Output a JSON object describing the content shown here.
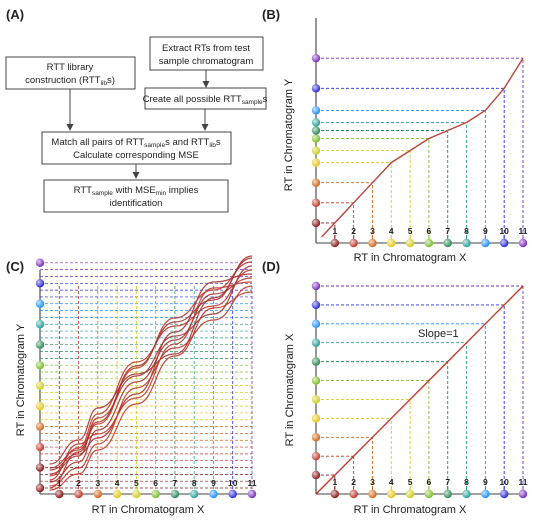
{
  "panels": {
    "a": {
      "label": "(A)",
      "boxes": {
        "library_line1": "RTT library",
        "library_line2_pre": "construction (RTT",
        "library_line2_sub": "lib",
        "library_line2_post": "s)",
        "extract_line1": "Extract RTs from test",
        "extract_line2": "sample chromatogram",
        "create_pre": "Create all possible RTT",
        "create_sub": "sample",
        "create_post": "s",
        "match_line1_pre": "Match all pairs of RTT",
        "match_line1_sub1": "sample",
        "match_line1_mid": "s and RTT",
        "match_line1_sub2": "lib",
        "match_line1_post": "s",
        "match_line2": "Calculate corresponding MSE",
        "result_line1_pre": "RTT",
        "result_line1_sub1": "sample",
        "result_line1_mid": " with MSE",
        "result_line1_sub2": "min",
        "result_line1_post": " implies",
        "result_line2": "identification"
      }
    },
    "b": {
      "label": "(B)",
      "xlabel": "RT in Chromatogram X",
      "ylabel": "RT in Chromatogram Y"
    },
    "c": {
      "label": "(C)",
      "xlabel": "RT in Chromatogram X",
      "ylabel": "RT in Chromatogram Y"
    },
    "d": {
      "label": "(D)",
      "xlabel": "RT in Chromatogram X",
      "ylabel": "RT in Chromatogram X",
      "annotation": "Slope=1"
    }
  },
  "x_tick_labels": [
    "1",
    "2",
    "3",
    "4",
    "5",
    "6",
    "7",
    "8",
    "9",
    "10",
    "11"
  ],
  "point_colors": [
    "#8b1a1a",
    "#c0392b",
    "#d2691e",
    "#e6c619",
    "#cfcf20",
    "#7cbf2a",
    "#2e8b57",
    "#2aa198",
    "#1e90ff",
    "#2b2bd6",
    "#7b2fbf"
  ],
  "chart_data": [
    {
      "panel": "B",
      "type": "line",
      "x": [
        0.3,
        0.95,
        1.5,
        2,
        3,
        4,
        5,
        6,
        7,
        8,
        9,
        10,
        11
      ],
      "y": [
        0.3,
        0.95,
        1.5,
        2,
        3,
        4,
        4.6,
        5.2,
        5.6,
        6,
        6.6,
        7.7,
        9.2
      ]
    },
    {
      "panel": "C",
      "type": "line",
      "series": [
        {
          "x": [
            0.5,
            2,
            3,
            5,
            7,
            9,
            11
          ],
          "y": [
            0.3,
            2.1,
            3.5,
            6.3,
            8.8,
            10.2,
            11.6
          ]
        },
        {
          "x": [
            0.5,
            2,
            3,
            5,
            7,
            9,
            11
          ],
          "y": [
            0.6,
            1.6,
            3.2,
            5.6,
            7.7,
            10.0,
            10.8
          ]
        },
        {
          "x": [
            0.5,
            2,
            3,
            5,
            7,
            9,
            11
          ],
          "y": [
            0.9,
            2.3,
            4.0,
            6.6,
            8.4,
            9.4,
            11.2
          ]
        },
        {
          "x": [
            0.5,
            2,
            3,
            5,
            7,
            9,
            11
          ],
          "y": [
            1.2,
            2.0,
            2.8,
            5.0,
            8.1,
            10.6,
            11.0
          ]
        },
        {
          "x": [
            0.5,
            2,
            3,
            5,
            7,
            9,
            11
          ],
          "y": [
            0.4,
            1.3,
            2.5,
            5.3,
            7.3,
            8.7,
            10.4
          ]
        },
        {
          "x": [
            0.5,
            2,
            3,
            5,
            7,
            9,
            11
          ],
          "y": [
            1.5,
            2.7,
            4.3,
            6.0,
            7.0,
            9.8,
            11.8
          ]
        },
        {
          "x": [
            0.5,
            2,
            3,
            5,
            7,
            9,
            11
          ],
          "y": [
            0.2,
            1.0,
            2.2,
            4.5,
            6.9,
            9.3,
            10.1
          ]
        },
        {
          "x": [
            0.5,
            2,
            3,
            5,
            7,
            9,
            11
          ],
          "y": [
            1.0,
            1.9,
            3.8,
            5.9,
            7.9,
            9.0,
            11.4
          ]
        },
        {
          "x": [
            0.5,
            2,
            3,
            5,
            7,
            9,
            11
          ],
          "y": [
            0.7,
            2.5,
            3.0,
            4.8,
            7.5,
            10.3,
            10.6
          ]
        },
        {
          "x": [
            0.5,
            2,
            3,
            5,
            7,
            9,
            11
          ],
          "y": [
            1.3,
            2.2,
            3.6,
            6.4,
            8.6,
            9.7,
            11.9
          ]
        }
      ]
    },
    {
      "panel": "D",
      "type": "line",
      "x": [
        0,
        11
      ],
      "y": [
        0,
        11
      ]
    }
  ]
}
